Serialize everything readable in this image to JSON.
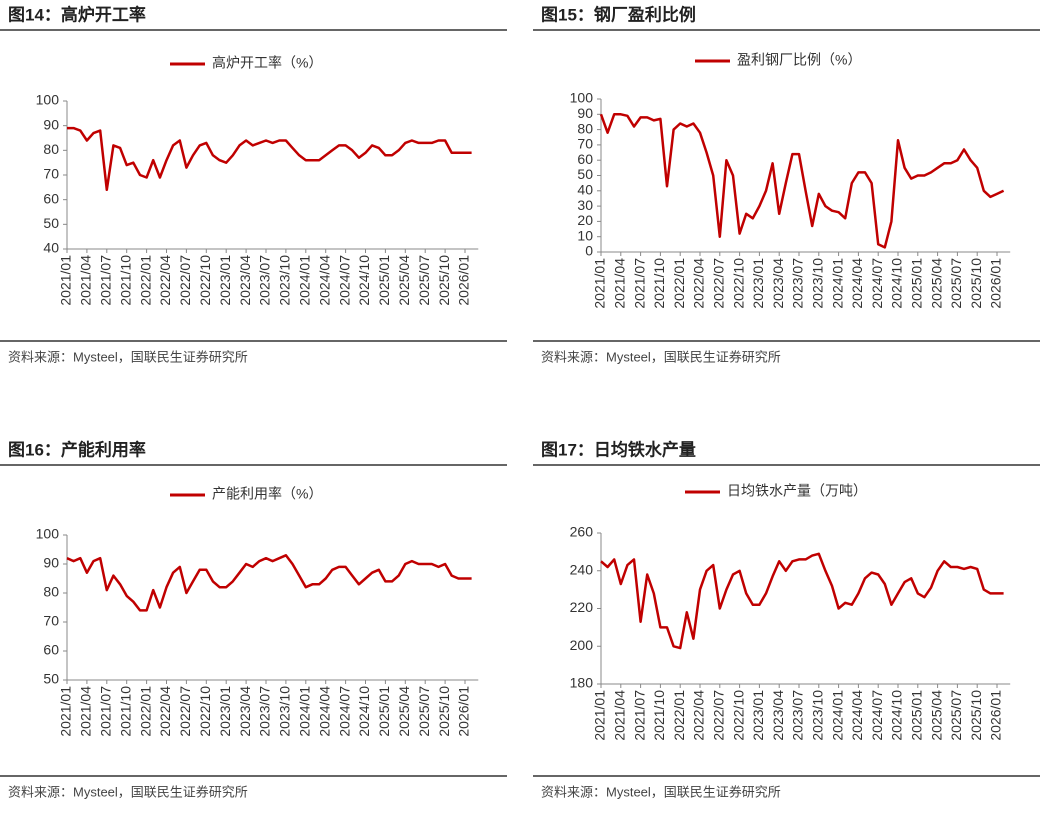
{
  "chart_data": [
    {
      "type": "line",
      "figure_title": "图14：高炉开工率",
      "source": "资料来源：Mysteel，国联民生证券研究所",
      "series": [
        {
          "name": "高炉开工率（%）",
          "color": "#c00000",
          "values": [
            89,
            89,
            88,
            84,
            87,
            88,
            64,
            82,
            81,
            74,
            75,
            70,
            69,
            76,
            69,
            76,
            82,
            84,
            73,
            78,
            82,
            83,
            78,
            76,
            75,
            78,
            82,
            84,
            82,
            83,
            84,
            83,
            84,
            84,
            81,
            78,
            76,
            76,
            76,
            78,
            80,
            82,
            82,
            80,
            77,
            79,
            82,
            81,
            78,
            78,
            80,
            83,
            84,
            83,
            83,
            83,
            84,
            84,
            79,
            79,
            79,
            79
          ]
        }
      ],
      "x": [
        "2021/01",
        "2021/02",
        "2021/03",
        "2021/04",
        "2021/05",
        "2021/06",
        "2021/07",
        "2021/08",
        "2021/09",
        "2021/10",
        "2021/11",
        "2021/12",
        "2022/01",
        "2022/02",
        "2022/03",
        "2022/04",
        "2022/05",
        "2022/06",
        "2022/07",
        "2022/08",
        "2022/09",
        "2022/10",
        "2022/11",
        "2022/12",
        "2023/01",
        "2023/02",
        "2023/03",
        "2023/04",
        "2023/05",
        "2023/06",
        "2023/07",
        "2023/08",
        "2023/09",
        "2023/10",
        "2023/11",
        "2023/12",
        "2024/01",
        "2024/02",
        "2024/03",
        "2024/04",
        "2024/05",
        "2024/06",
        "2024/07",
        "2024/08",
        "2024/09",
        "2024/10",
        "2024/11",
        "2024/12",
        "2025/01",
        "2025/02",
        "2025/03",
        "2025/04",
        "2025/05",
        "2025/06",
        "2025/07",
        "2025/08",
        "2025/09",
        "2025/10",
        "2025/11",
        "2025/12",
        "2026/01",
        "2026/02"
      ],
      "xticks": [
        "2021/01",
        "2021/04",
        "2021/07",
        "2021/10",
        "2022/01",
        "2022/04",
        "2022/07",
        "2022/10",
        "2023/01",
        "2023/04",
        "2023/07",
        "2023/10",
        "2024/01",
        "2024/04",
        "2024/07",
        "2024/10",
        "2025/01",
        "2025/04",
        "2025/07",
        "2025/10",
        "2026/01"
      ],
      "ylim": [
        40,
        100
      ],
      "yticks": [
        40,
        50,
        60,
        70,
        80,
        90,
        100
      ]
    },
    {
      "type": "line",
      "figure_title": "图15：钢厂盈利比例",
      "source": "资料来源：Mysteel，国联民生证券研究所",
      "series": [
        {
          "name": "盈利钢厂比例（%）",
          "color": "#c00000",
          "values": [
            90,
            78,
            90,
            90,
            89,
            82,
            88,
            88,
            86,
            87,
            43,
            80,
            84,
            82,
            84,
            78,
            65,
            50,
            10,
            60,
            50,
            12,
            25,
            22,
            30,
            40,
            58,
            25,
            45,
            64,
            64,
            40,
            17,
            38,
            30,
            27,
            26,
            22,
            45,
            52,
            52,
            45,
            5,
            3,
            20,
            73,
            55,
            48,
            50,
            50,
            52,
            55,
            58,
            58,
            60,
            67,
            60,
            55,
            40,
            36,
            38,
            40
          ]
        }
      ],
      "x": [
        "2021/01",
        "2021/02",
        "2021/03",
        "2021/04",
        "2021/05",
        "2021/06",
        "2021/07",
        "2021/08",
        "2021/09",
        "2021/10",
        "2021/11",
        "2021/12",
        "2022/01",
        "2022/02",
        "2022/03",
        "2022/04",
        "2022/05",
        "2022/06",
        "2022/07",
        "2022/08",
        "2022/09",
        "2022/10",
        "2022/11",
        "2022/12",
        "2023/01",
        "2023/02",
        "2023/03",
        "2023/04",
        "2023/05",
        "2023/06",
        "2023/07",
        "2023/08",
        "2023/09",
        "2023/10",
        "2023/11",
        "2023/12",
        "2024/01",
        "2024/02",
        "2024/03",
        "2024/04",
        "2024/05",
        "2024/06",
        "2024/07",
        "2024/08",
        "2024/09",
        "2024/10",
        "2024/11",
        "2024/12",
        "2025/01",
        "2025/02",
        "2025/03",
        "2025/04",
        "2025/05",
        "2025/06",
        "2025/07",
        "2025/08",
        "2025/09",
        "2025/10",
        "2025/11",
        "2025/12",
        "2026/01",
        "2026/02"
      ],
      "xticks": [
        "2021/01",
        "2021/04",
        "2021/07",
        "2021/10",
        "2022/01",
        "2022/04",
        "2022/07",
        "2022/10",
        "2023/01",
        "2023/04",
        "2023/07",
        "2023/10",
        "2024/01",
        "2024/04",
        "2024/07",
        "2024/10",
        "2025/01",
        "2025/04",
        "2025/07",
        "2025/10",
        "2026/01"
      ],
      "ylim": [
        0,
        100
      ],
      "yticks": [
        0,
        10,
        20,
        30,
        40,
        50,
        60,
        70,
        80,
        90,
        100
      ]
    },
    {
      "type": "line",
      "figure_title": "图16：产能利用率",
      "source": "资料来源：Mysteel，国联民生证券研究所",
      "series": [
        {
          "name": "产能利用率（%）",
          "color": "#c00000",
          "values": [
            92,
            91,
            92,
            87,
            91,
            92,
            81,
            86,
            83,
            79,
            77,
            74,
            74,
            81,
            75,
            82,
            87,
            89,
            80,
            84,
            88,
            88,
            84,
            82,
            82,
            84,
            87,
            90,
            89,
            91,
            92,
            91,
            92,
            93,
            90,
            86,
            82,
            83,
            83,
            85,
            88,
            89,
            89,
            86,
            83,
            85,
            87,
            88,
            84,
            84,
            86,
            90,
            91,
            90,
            90,
            90,
            89,
            90,
            86,
            85,
            85,
            85
          ]
        }
      ],
      "x": [
        "2021/01",
        "2021/02",
        "2021/03",
        "2021/04",
        "2021/05",
        "2021/06",
        "2021/07",
        "2021/08",
        "2021/09",
        "2021/10",
        "2021/11",
        "2021/12",
        "2022/01",
        "2022/02",
        "2022/03",
        "2022/04",
        "2022/05",
        "2022/06",
        "2022/07",
        "2022/08",
        "2022/09",
        "2022/10",
        "2022/11",
        "2022/12",
        "2023/01",
        "2023/02",
        "2023/03",
        "2023/04",
        "2023/05",
        "2023/06",
        "2023/07",
        "2023/08",
        "2023/09",
        "2023/10",
        "2023/11",
        "2023/12",
        "2024/01",
        "2024/02",
        "2024/03",
        "2024/04",
        "2024/05",
        "2024/06",
        "2024/07",
        "2024/08",
        "2024/09",
        "2024/10",
        "2024/11",
        "2024/12",
        "2025/01",
        "2025/02",
        "2025/03",
        "2025/04",
        "2025/05",
        "2025/06",
        "2025/07",
        "2025/08",
        "2025/09",
        "2025/10",
        "2025/11",
        "2025/12",
        "2026/01",
        "2026/02"
      ],
      "xticks": [
        "2021/01",
        "2021/04",
        "2021/07",
        "2021/10",
        "2022/01",
        "2022/04",
        "2022/07",
        "2022/10",
        "2023/01",
        "2023/04",
        "2023/07",
        "2023/10",
        "2024/01",
        "2024/04",
        "2024/07",
        "2024/10",
        "2025/01",
        "2025/04",
        "2025/07",
        "2025/10",
        "2026/01"
      ],
      "ylim": [
        50,
        100
      ],
      "yticks": [
        50,
        60,
        70,
        80,
        90,
        100
      ]
    },
    {
      "type": "line",
      "figure_title": "图17：日均铁水产量",
      "source": "资料来源：Mysteel，国联民生证券研究所",
      "series": [
        {
          "name": "日均铁水产量（万吨）",
          "color": "#c00000",
          "values": [
            245,
            242,
            246,
            233,
            243,
            246,
            213,
            238,
            228,
            210,
            210,
            200,
            199,
            218,
            204,
            230,
            240,
            243,
            220,
            230,
            238,
            240,
            228,
            222,
            222,
            228,
            237,
            245,
            240,
            245,
            246,
            246,
            248,
            249,
            240,
            232,
            220,
            223,
            222,
            228,
            236,
            239,
            238,
            233,
            222,
            228,
            234,
            236,
            228,
            226,
            231,
            240,
            245,
            242,
            242,
            241,
            242,
            241,
            230,
            228,
            228,
            228
          ]
        }
      ],
      "x": [
        "2021/01",
        "2021/02",
        "2021/03",
        "2021/04",
        "2021/05",
        "2021/06",
        "2021/07",
        "2021/08",
        "2021/09",
        "2021/10",
        "2021/11",
        "2021/12",
        "2022/01",
        "2022/02",
        "2022/03",
        "2022/04",
        "2022/05",
        "2022/06",
        "2022/07",
        "2022/08",
        "2022/09",
        "2022/10",
        "2022/11",
        "2022/12",
        "2023/01",
        "2023/02",
        "2023/03",
        "2023/04",
        "2023/05",
        "2023/06",
        "2023/07",
        "2023/08",
        "2023/09",
        "2023/10",
        "2023/11",
        "2023/12",
        "2024/01",
        "2024/02",
        "2024/03",
        "2024/04",
        "2024/05",
        "2024/06",
        "2024/07",
        "2024/08",
        "2024/09",
        "2024/10",
        "2024/11",
        "2024/12",
        "2025/01",
        "2025/02",
        "2025/03",
        "2025/04",
        "2025/05",
        "2025/06",
        "2025/07",
        "2025/08",
        "2025/09",
        "2025/10",
        "2025/11",
        "2025/12",
        "2026/01",
        "2026/02"
      ],
      "xticks": [
        "2021/01",
        "2021/04",
        "2021/07",
        "2021/10",
        "2022/01",
        "2022/04",
        "2022/07",
        "2022/10",
        "2023/01",
        "2023/04",
        "2023/07",
        "2023/10",
        "2024/01",
        "2024/04",
        "2024/07",
        "2024/10",
        "2025/01",
        "2025/04",
        "2025/07",
        "2025/10",
        "2026/01"
      ],
      "ylim": [
        180,
        260
      ],
      "yticks": [
        180,
        200,
        220,
        240,
        260
      ]
    }
  ]
}
